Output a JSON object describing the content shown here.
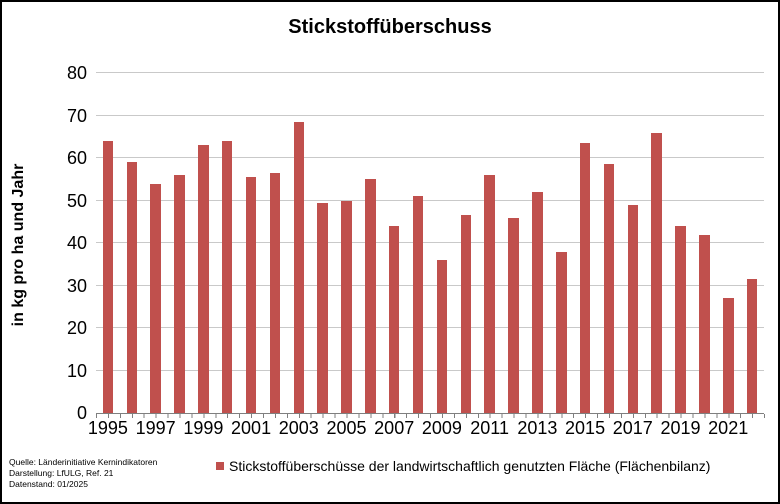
{
  "chart_data": {
    "type": "bar",
    "title": "Stickstoffüberschuss",
    "ylabel": "in kg pro ha und Jahr",
    "xlabel": "",
    "ylim": [
      0,
      80
    ],
    "y_ticks": [
      0,
      10,
      20,
      30,
      40,
      50,
      60,
      70,
      80
    ],
    "grid": true,
    "x_label_every": 2,
    "categories": [
      "1995",
      "1996",
      "1997",
      "1998",
      "1999",
      "2000",
      "2001",
      "2002",
      "2003",
      "2004",
      "2005",
      "2006",
      "2007",
      "2008",
      "2009",
      "2010",
      "2011",
      "2012",
      "2013",
      "2014",
      "2015",
      "2016",
      "2017",
      "2018",
      "2019",
      "2020",
      "2021",
      "2022"
    ],
    "values": [
      64,
      59,
      54,
      56,
      63,
      64,
      55.5,
      56.5,
      68.5,
      49.5,
      50,
      55,
      44,
      51,
      36,
      46.5,
      56,
      46,
      52,
      38,
      63.5,
      58.5,
      49,
      66,
      44,
      42,
      27,
      31.5
    ],
    "legend": {
      "position": "bottom",
      "entries": [
        {
          "label": "Stickstoffüberschüsse der landwirtschaftlich genutzten Fläche (Flächenbilanz)",
          "color": "#c0504d"
        }
      ]
    },
    "colors": {
      "bar": "#c0504d",
      "gridline": "#c9c9c9",
      "axis": "#7f7f7f"
    }
  },
  "source": {
    "line1": "Quelle: Länderinitiative Kernindikatoren",
    "line2": "Darstellung: LfULG, Ref. 21",
    "line3": "Datenstand: 01/2025"
  }
}
